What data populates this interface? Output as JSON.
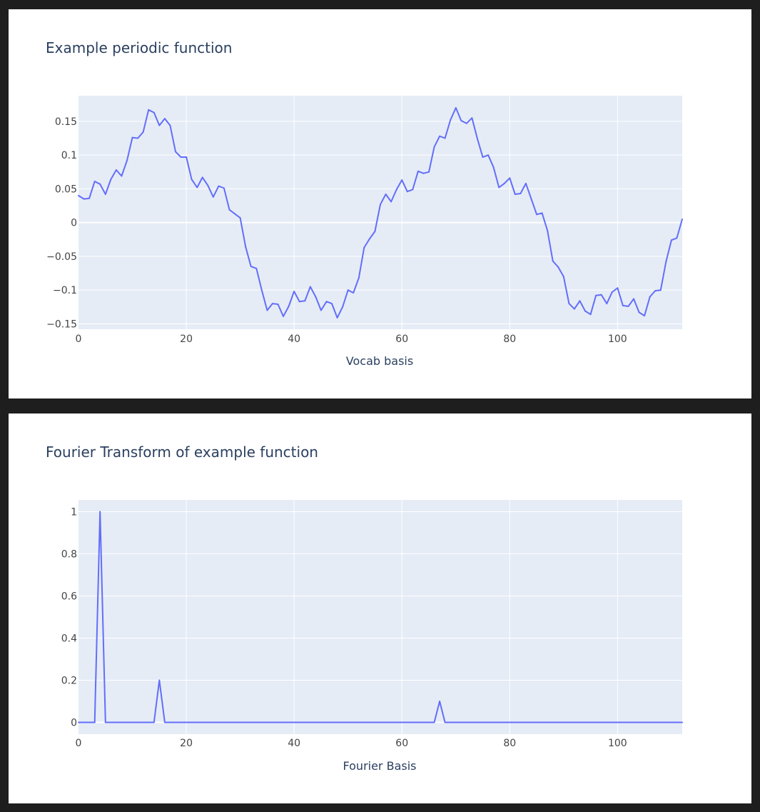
{
  "chart_data": [
    {
      "type": "line",
      "title": "Example periodic function",
      "xlabel": "Vocab basis",
      "ylabel": "",
      "xlim": [
        0,
        112
      ],
      "ylim": [
        -0.158,
        0.188
      ],
      "x_ticks": [
        {
          "value": 0,
          "label": "0"
        },
        {
          "value": 20,
          "label": "20"
        },
        {
          "value": 40,
          "label": "40"
        },
        {
          "value": 60,
          "label": "60"
        },
        {
          "value": 80,
          "label": "80"
        },
        {
          "value": 100,
          "label": "100"
        }
      ],
      "y_ticks": [
        {
          "value": 0.15,
          "label": "0.15"
        },
        {
          "value": 0.1,
          "label": "0.1"
        },
        {
          "value": 0.05,
          "label": "0.05"
        },
        {
          "value": 0,
          "label": "0"
        },
        {
          "value": -0.05,
          "label": "−0.05"
        },
        {
          "value": -0.1,
          "label": "−0.1"
        },
        {
          "value": -0.15,
          "label": "−0.15"
        }
      ],
      "grid": true,
      "line_color": "#636efa",
      "series": [
        {
          "values": [
            0.04,
            0.035,
            0.036,
            0.061,
            0.057,
            0.042,
            0.064,
            0.078,
            0.069,
            0.092,
            0.126,
            0.125,
            0.134,
            0.167,
            0.163,
            0.144,
            0.154,
            0.144,
            0.105,
            0.097,
            0.097,
            0.064,
            0.052,
            0.067,
            0.055,
            0.038,
            0.054,
            0.051,
            0.019,
            0.013,
            0.007,
            -0.036,
            -0.065,
            -0.068,
            -0.1,
            -0.13,
            -0.12,
            -0.121,
            -0.139,
            -0.124,
            -0.102,
            -0.117,
            -0.116,
            -0.095,
            -0.11,
            -0.13,
            -0.117,
            -0.12,
            -0.141,
            -0.125,
            -0.1,
            -0.104,
            -0.082,
            -0.037,
            -0.024,
            -0.013,
            0.027,
            0.042,
            0.031,
            0.049,
            0.063,
            0.046,
            0.049,
            0.076,
            0.073,
            0.075,
            0.112,
            0.128,
            0.125,
            0.152,
            0.17,
            0.151,
            0.147,
            0.155,
            0.124,
            0.097,
            0.1,
            0.082,
            0.052,
            0.058,
            0.066,
            0.042,
            0.043,
            0.058,
            0.035,
            0.012,
            0.014,
            -0.012,
            -0.057,
            -0.066,
            -0.08,
            -0.12,
            -0.128,
            -0.116,
            -0.131,
            -0.136,
            -0.108,
            -0.107,
            -0.12,
            -0.103,
            -0.097,
            -0.123,
            -0.124,
            -0.113,
            -0.133,
            -0.138,
            -0.11,
            -0.101,
            -0.1,
            -0.058,
            -0.026,
            -0.023,
            0.005
          ]
        }
      ]
    },
    {
      "type": "line",
      "title": "Fourier Transform of example function",
      "xlabel": "Fourier Basis",
      "ylabel": "",
      "xlim": [
        0,
        112
      ],
      "ylim": [
        -0.056,
        1.056
      ],
      "x_ticks": [
        {
          "value": 0,
          "label": "0"
        },
        {
          "value": 20,
          "label": "20"
        },
        {
          "value": 40,
          "label": "40"
        },
        {
          "value": 60,
          "label": "60"
        },
        {
          "value": 80,
          "label": "80"
        },
        {
          "value": 100,
          "label": "100"
        }
      ],
      "y_ticks": [
        {
          "value": 1,
          "label": "1"
        },
        {
          "value": 0.8,
          "label": "0.8"
        },
        {
          "value": 0.6,
          "label": "0.6"
        },
        {
          "value": 0.4,
          "label": "0.4"
        },
        {
          "value": 0.2,
          "label": "0.2"
        },
        {
          "value": 0,
          "label": "0"
        }
      ],
      "grid": true,
      "line_color": "#636efa",
      "series": [
        {
          "x": [
            0,
            3,
            4,
            5,
            14,
            15,
            16,
            66,
            67,
            68,
            112
          ],
          "values": [
            0,
            0,
            1,
            0,
            0,
            0.2,
            0,
            0,
            0.1,
            0,
            0
          ]
        }
      ]
    }
  ]
}
